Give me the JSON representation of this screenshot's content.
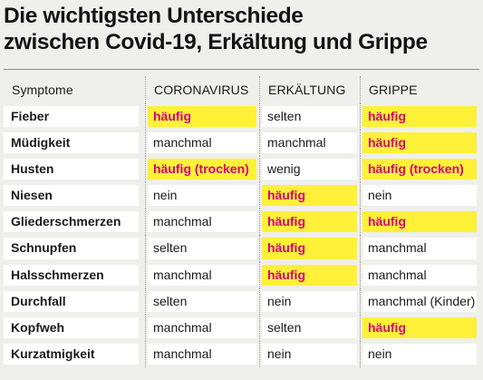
{
  "title": {
    "line1": "Die wichtigsten Unterschiede",
    "line2": "zwischen Covid-19, Erkältung und Grippe"
  },
  "table": {
    "headers": [
      "Symptome",
      "CORONAVIRUS",
      "ERKÄLTUNG",
      "GRIPPE"
    ],
    "rows": [
      {
        "symptom": "Fieber",
        "coronavirus": "häufig",
        "erkaeltung": "selten",
        "grippe": "häufig"
      },
      {
        "symptom": "Müdigkeit",
        "coronavirus": "manchmal",
        "erkaeltung": "manchmal",
        "grippe": "häufig"
      },
      {
        "symptom": "Husten",
        "coronavirus": "häufig (trocken)",
        "erkaeltung": "wenig",
        "grippe": "häufig (trocken)"
      },
      {
        "symptom": "Niesen",
        "coronavirus": "nein",
        "erkaeltung": "häufig",
        "grippe": "nein"
      },
      {
        "symptom": "Gliederschmerzen",
        "coronavirus": "manchmal",
        "erkaeltung": "häufig",
        "grippe": "häufig"
      },
      {
        "symptom": "Schnupfen",
        "coronavirus": "selten",
        "erkaeltung": "häufig",
        "grippe": "manchmal"
      },
      {
        "symptom": "Halsschmerzen",
        "coronavirus": "manchmal",
        "erkaeltung": "häufig",
        "grippe": "manchmal"
      },
      {
        "symptom": "Durchfall",
        "coronavirus": "selten",
        "erkaeltung": "nein",
        "grippe": "manchmal (Kinder)"
      },
      {
        "symptom": "Kopfweh",
        "coronavirus": "manchmal",
        "erkaeltung": "selten",
        "grippe": "häufig"
      },
      {
        "symptom": "Kurzatmigkeit",
        "coronavirus": "manchmal",
        "erkaeltung": "nein",
        "grippe": "nein"
      }
    ]
  },
  "colors": {
    "background": "#efefeb",
    "cell": "#ffffff",
    "highlight": "#fff137",
    "highlight_text": "#d6007e"
  }
}
